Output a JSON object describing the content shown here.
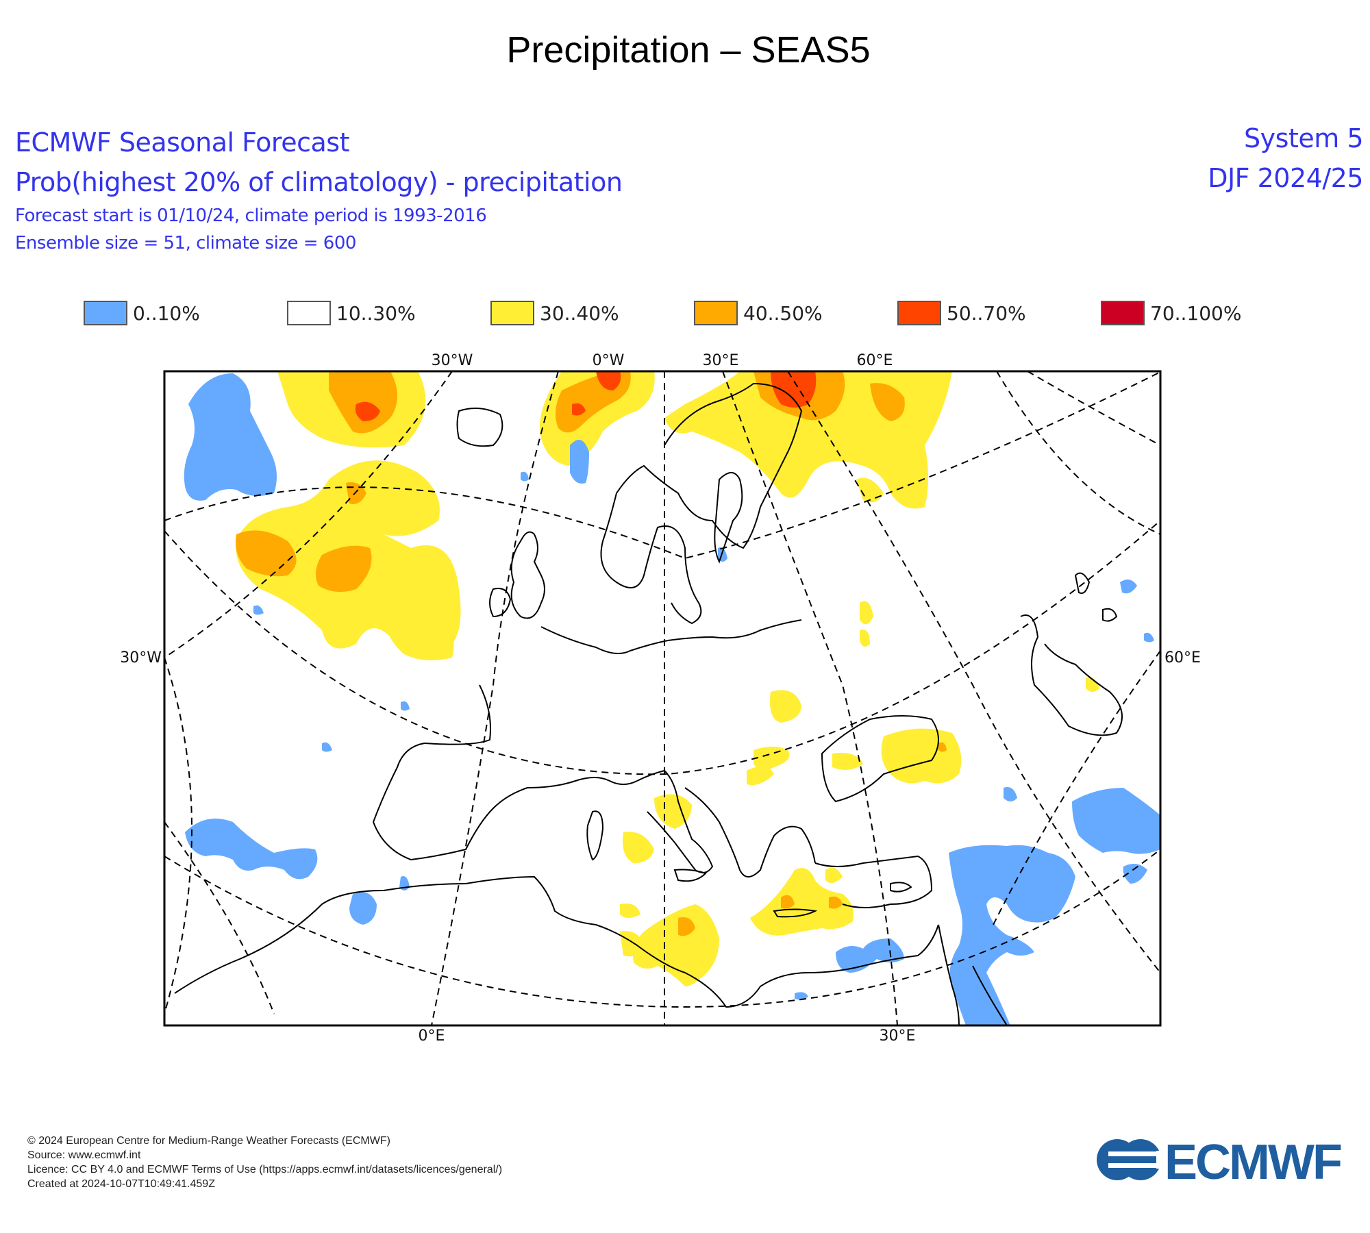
{
  "title": "Precipitation – SEAS5",
  "header": {
    "line1": "ECMWF Seasonal Forecast",
    "line2": "Prob(highest 20% of climatology) - precipitation",
    "line3": "Forecast start is 01/10/24, climate period is 1993-2016",
    "line4": "Ensemble size = 51, climate size = 600",
    "system": "System 5",
    "season": "DJF 2024/25"
  },
  "legend": [
    {
      "label": "0..10%",
      "color": "#66aaff"
    },
    {
      "label": "10..30%",
      "color": "#ffffff"
    },
    {
      "label": "30..40%",
      "color": "#ffee33"
    },
    {
      "label": "40..50%",
      "color": "#ffaa00"
    },
    {
      "label": "50..70%",
      "color": "#ff4400"
    },
    {
      "label": "70..100%",
      "color": "#cc0022"
    }
  ],
  "map": {
    "top_ticks": [
      "30°W",
      "0°W",
      "30°E",
      "60°E"
    ],
    "left_tick": "30°W",
    "right_tick": "60°E",
    "bottom_ticks": [
      "0°E",
      "30°E"
    ]
  },
  "footer": {
    "copyright": "© 2024 European Centre for Medium-Range Weather Forecasts (ECMWF)",
    "source": "Source: www.ecmwf.int",
    "licence": "Licence: CC BY 4.0 and ECMWF Terms of Use (https://apps.ecmwf.int/datasets/licences/general/)",
    "created": "Created at 2024-10-07T10:49:41.459Z"
  },
  "logo_text": "ECMWF"
}
